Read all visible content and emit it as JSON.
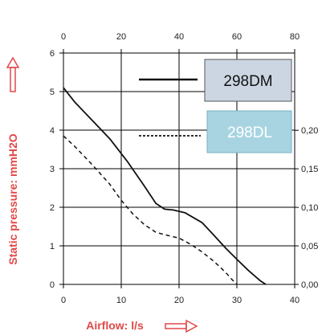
{
  "colors": {
    "accent": "#e04848",
    "grid": "#000000",
    "box_dm": "#ccd6e2",
    "box_dl": "#a8d4e2",
    "text_dl": "#ffffff",
    "text_dm": "#111111"
  },
  "chart_data": {
    "type": "line",
    "xlabel": "Airflow: l/s",
    "ylabel": "Static pressure: mmH2O",
    "x_bottom_ticks": [
      "0",
      "10",
      "20",
      "30",
      "40"
    ],
    "x_top_ticks": [
      "0",
      "20",
      "40",
      "60",
      "80"
    ],
    "y_left_ticks": [
      "0",
      "1",
      "2",
      "3",
      "4",
      "5",
      "6"
    ],
    "y_right_ticks": [
      "0,00",
      "0,05",
      "0,10",
      "0,15",
      "0,20"
    ],
    "xlim": [
      0,
      40
    ],
    "ylim": [
      0,
      6
    ],
    "grid": true,
    "legend_position": "top-right",
    "series": [
      {
        "name": "298DM",
        "style": "solid",
        "points": [
          [
            0,
            5.1
          ],
          [
            2,
            4.72
          ],
          [
            5,
            4.25
          ],
          [
            8,
            3.78
          ],
          [
            11,
            3.2
          ],
          [
            14,
            2.55
          ],
          [
            16,
            2.1
          ],
          [
            17.5,
            1.95
          ],
          [
            19,
            1.93
          ],
          [
            21,
            1.86
          ],
          [
            24,
            1.6
          ],
          [
            26,
            1.28
          ],
          [
            28,
            0.95
          ],
          [
            30,
            0.65
          ],
          [
            32,
            0.36
          ],
          [
            34,
            0.1
          ],
          [
            35,
            0.0
          ]
        ]
      },
      {
        "name": "298DL",
        "style": "dashed",
        "points": [
          [
            0,
            3.85
          ],
          [
            2,
            3.57
          ],
          [
            5,
            3.1
          ],
          [
            8,
            2.6
          ],
          [
            10,
            2.18
          ],
          [
            12,
            1.83
          ],
          [
            14,
            1.55
          ],
          [
            16,
            1.35
          ],
          [
            18,
            1.27
          ],
          [
            20,
            1.2
          ],
          [
            22,
            1.04
          ],
          [
            24,
            0.84
          ],
          [
            26,
            0.6
          ],
          [
            28,
            0.32
          ],
          [
            29,
            0.15
          ],
          [
            30,
            0.0
          ]
        ]
      }
    ]
  }
}
